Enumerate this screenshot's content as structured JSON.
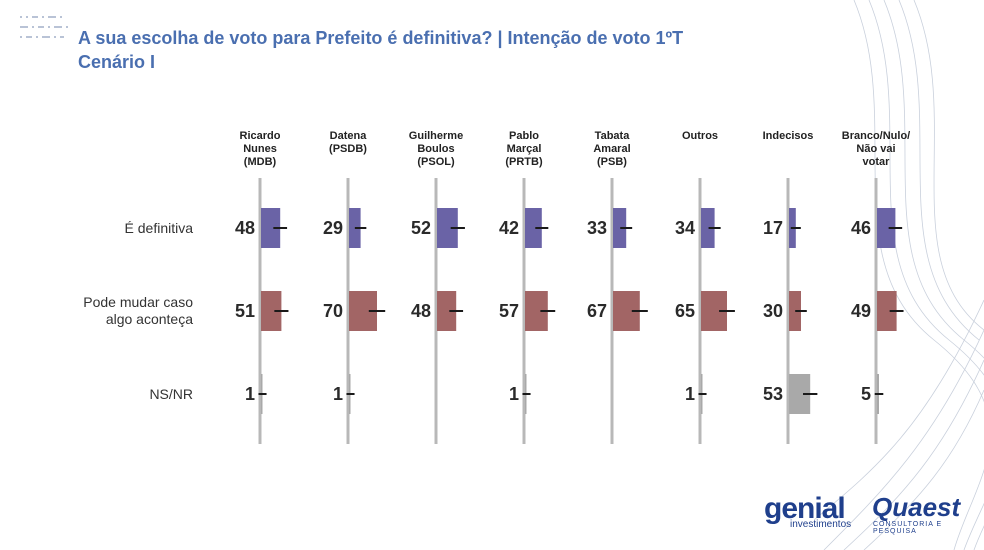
{
  "title_line1": "A sua escolha de voto para Prefeito é definitiva? | Intenção de voto 1ºT",
  "title_line2": "Cenário I",
  "colors": {
    "definitiva": "#6a63a6",
    "pode_mudar": "#a26565",
    "nsnr": "#a9a9a9",
    "axis": "#b8b8b8",
    "title": "#4a6fb0"
  },
  "chart_data": {
    "type": "bar",
    "orientation": "horizontal-small-multiples",
    "categories": [
      "Ricardo Nunes (MDB)",
      "Datena (PSDB)",
      "Guilherme Boulos (PSOL)",
      "Pablo Marçal (PRTB)",
      "Tabata Amaral (PSB)",
      "Outros",
      "Indecisos",
      "Branco/Nulo/ Não vai votar"
    ],
    "category_lines": [
      [
        "Ricardo",
        "Nunes",
        "(MDB)"
      ],
      [
        "Datena",
        "(PSDB)"
      ],
      [
        "Guilherme",
        "Boulos",
        "(PSOL)"
      ],
      [
        "Pablo",
        "Marçal",
        "(PRTB)"
      ],
      [
        "Tabata",
        "Amaral",
        "(PSB)"
      ],
      [
        "Outros"
      ],
      [
        "Indecisos"
      ],
      [
        "Branco/Nulo/",
        "Não vai",
        "votar"
      ]
    ],
    "series": [
      {
        "name": "É definitiva",
        "values": [
          48,
          29,
          52,
          42,
          33,
          34,
          17,
          46
        ]
      },
      {
        "name": "Pode mudar caso algo aconteça",
        "values": [
          51,
          70,
          48,
          57,
          67,
          65,
          30,
          49
        ]
      },
      {
        "name": "NS/NR",
        "values": [
          1,
          1,
          null,
          1,
          null,
          1,
          53,
          5
        ]
      }
    ],
    "row_label_lines": [
      [
        "É definitiva"
      ],
      [
        "Pode mudar caso",
        "algo aconteça"
      ],
      [
        "NS/NR"
      ]
    ],
    "xlim": [
      0,
      100
    ],
    "grid": false
  },
  "logos": {
    "genial": "genial",
    "genial_sub": "investimentos",
    "quaest": "Quaest",
    "quaest_sub": "CONSULTORIA E PESQUISA"
  }
}
